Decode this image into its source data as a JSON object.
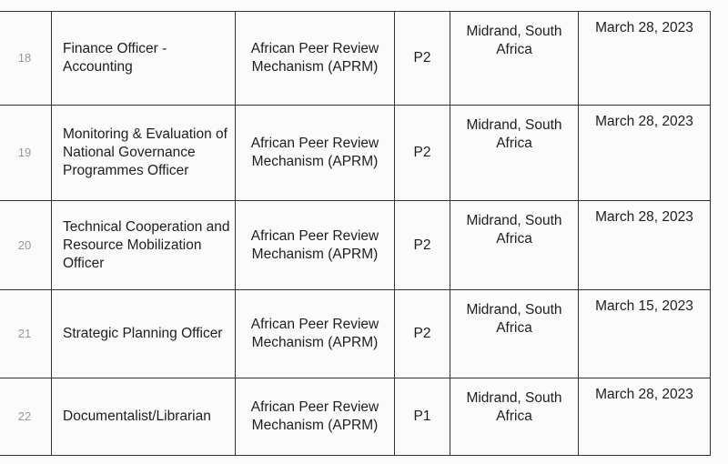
{
  "rows": [
    {
      "num": "18",
      "title": "Finance Officer - Accounting",
      "organization": "African Peer Review Mechanism (APRM)",
      "grade": "P2",
      "location": "Midrand, South Africa",
      "deadline": "March 28, 2023"
    },
    {
      "num": "19",
      "title": "Monitoring & Evaluation of National Governance Programmes Officer",
      "organization": "African Peer Review Mechanism (APRM)",
      "grade": "P2",
      "location": "Midrand, South Africa",
      "deadline": "March 28, 2023"
    },
    {
      "num": "20",
      "title": "Technical Cooperation and Resource Mobilization Officer",
      "organization": "African Peer Review Mechanism (APRM)",
      "grade": "P2",
      "location": "Midrand, South Africa",
      "deadline": "March 28, 2023"
    },
    {
      "num": "21",
      "title": "Strategic Planning Officer",
      "organization": "African Peer Review Mechanism (APRM)",
      "grade": "P2",
      "location": "Midrand, South Africa",
      "deadline": "March 15, 2023"
    },
    {
      "num": "22",
      "title": "Documentalist/Librarian",
      "organization": "African Peer Review Mechanism (APRM)",
      "grade": "P1",
      "location": "Midrand, South Africa",
      "deadline": "March 28, 2023"
    }
  ]
}
